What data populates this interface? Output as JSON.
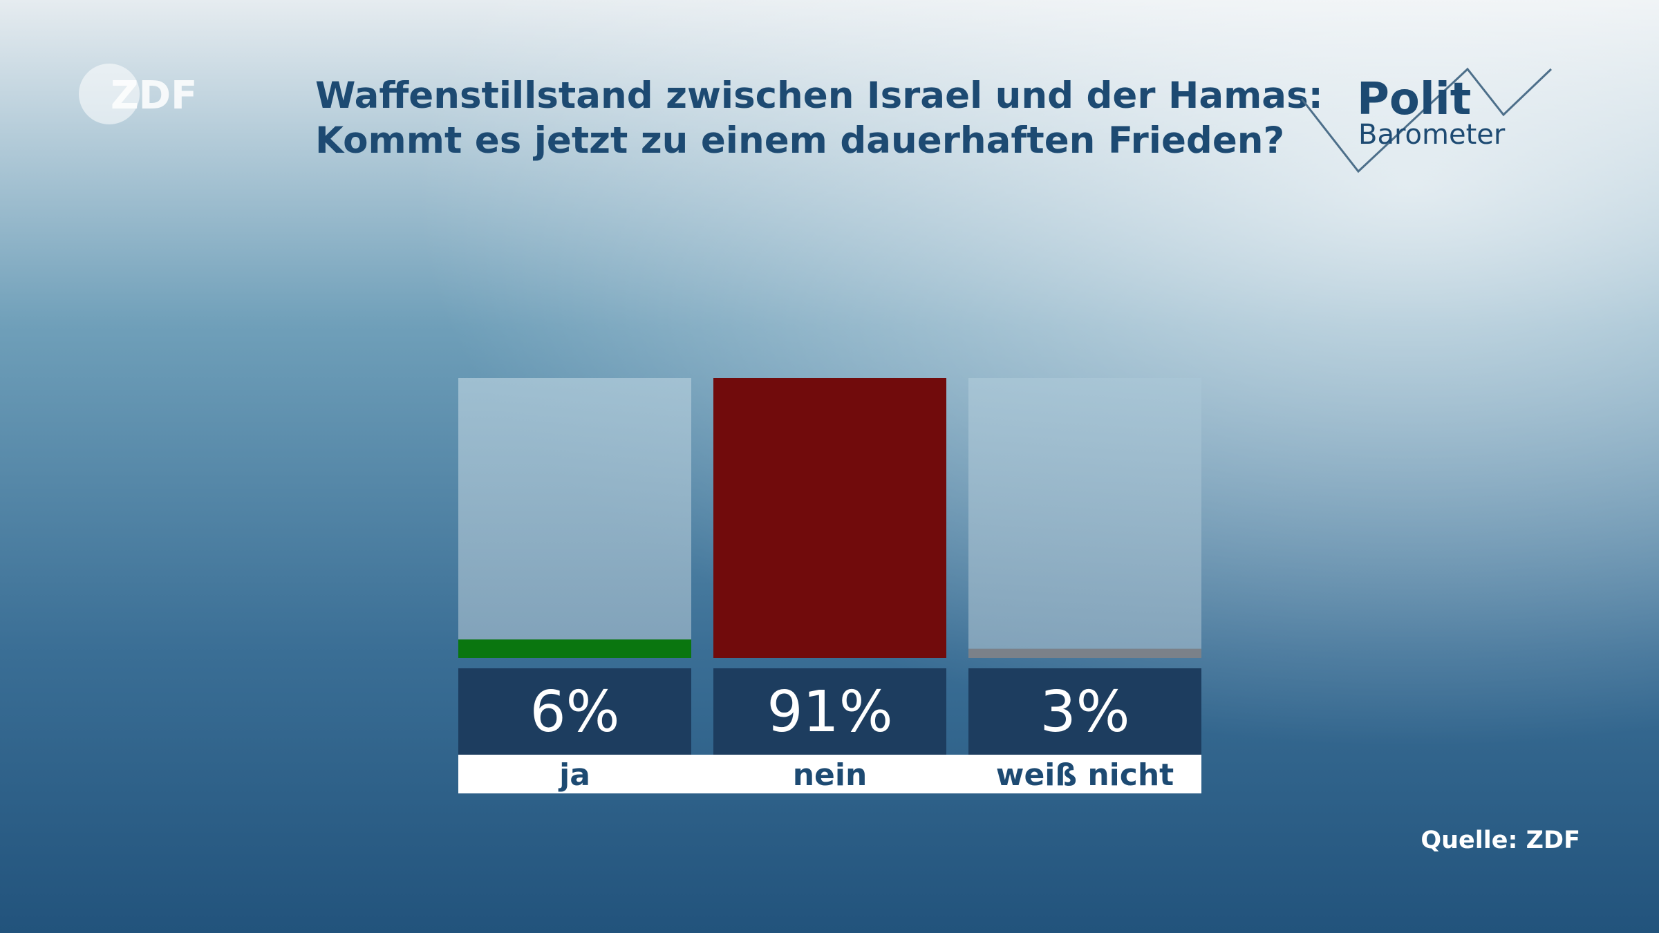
{
  "chart_data": {
    "type": "bar",
    "title": [
      "Waffenstillstand zwischen Israel und der Hamas:",
      "Kommt es jetzt zu einem dauerhaften Frieden?"
    ],
    "categories": [
      "ja",
      "nein",
      "weiß nicht"
    ],
    "values": [
      6,
      91,
      3
    ],
    "value_labels": [
      "6%",
      "91%",
      "3%"
    ],
    "colors": [
      "#0a760f",
      "#710b0c",
      "#7b8189"
    ],
    "ylim": [
      0,
      91
    ],
    "logo": "ZDF",
    "brand": [
      "Polit",
      "Barometer"
    ],
    "source": "Quelle: ZDF"
  }
}
